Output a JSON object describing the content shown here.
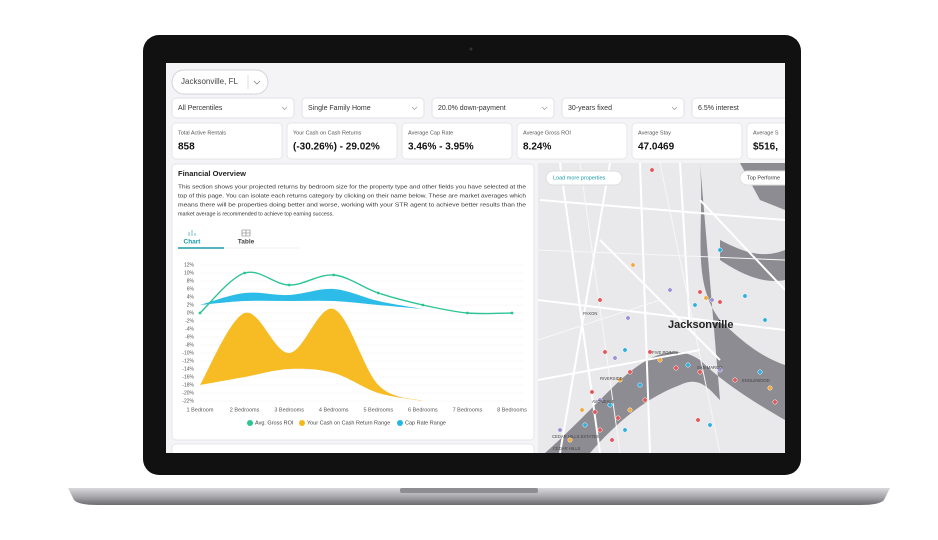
{
  "location": "Jacksonville, FL",
  "filters": [
    "All Percentiles",
    "Single Family Home",
    "20.0% down-payment",
    "30-years fixed",
    "6.5% interest"
  ],
  "stats": [
    {
      "label": "Total Active Rentals",
      "value": "858"
    },
    {
      "label": "Your Cash on Cash Returns",
      "value": "(-30.26%) - 29.02%"
    },
    {
      "label": "Average Cap Rate",
      "value": "3.46% - 3.95%"
    },
    {
      "label": "Average Gross ROI",
      "value": "8.24%"
    },
    {
      "label": "Average Stay",
      "value": "47.0469"
    },
    {
      "label": "Average S",
      "value": "$516,"
    }
  ],
  "overview": {
    "title": "Financial Overview",
    "description_lines": [
      "This section shows your projected returns by bedroom size for the property type and other fields you have selected at the",
      "top of this page. You can isolate each returns category by clicking on their name below. These are market averages which",
      "means there will be properties doing better and worse, working with your STR agent to achieve better results than the",
      "market average is recommended to achieve top earning success."
    ],
    "tabs": [
      "Chart",
      "Table"
    ]
  },
  "chart_data": {
    "type": "line",
    "categories": [
      "1 Bedroom",
      "2 Bedrooms",
      "3 Bedrooms",
      "4 Bedrooms",
      "5 Bedrooms",
      "6 Bedrooms",
      "7 Bedrooms",
      "8 Bedrooms"
    ],
    "ylim": [
      -22,
      12
    ],
    "yticks": [
      {
        "value": 12,
        "label": "12%"
      },
      {
        "value": 10,
        "label": "10%"
      },
      {
        "value": 8,
        "label": "8%"
      },
      {
        "value": 6,
        "label": "6%"
      },
      {
        "value": 4,
        "label": "4%"
      },
      {
        "value": 2,
        "label": "2%"
      },
      {
        "value": 0,
        "label": "0%"
      },
      {
        "value": -2,
        "label": "-2%"
      },
      {
        "value": -4,
        "label": "-4%"
      },
      {
        "value": -6,
        "label": "-6%"
      },
      {
        "value": -8,
        "label": "-8%"
      },
      {
        "value": -10,
        "label": "-10%"
      },
      {
        "value": -12,
        "label": "-12%"
      },
      {
        "value": -14,
        "label": "-14%"
      },
      {
        "value": -16,
        "label": "-16%"
      },
      {
        "value": -18,
        "label": "-18%"
      },
      {
        "value": -20,
        "label": "-20%"
      },
      {
        "value": -22,
        "label": "-22%"
      }
    ],
    "grid": true,
    "series": [
      {
        "name": "Avg. Gross ROI",
        "color": "#2cc495",
        "kind": "line",
        "values": [
          0,
          10,
          7,
          9.5,
          5,
          2,
          0,
          0
        ]
      },
      {
        "name": "Your Cash on Cash Return Range",
        "color": "#f7b718",
        "kind": "range",
        "high": [
          -18,
          0,
          -10,
          1,
          -18,
          -22,
          null,
          null
        ],
        "low": [
          -18,
          -16,
          -14,
          -15,
          -20,
          -22,
          null,
          null
        ]
      },
      {
        "name": "Cap Rate Range",
        "color": "#21b8e6",
        "kind": "range",
        "high": [
          2,
          5,
          4.5,
          6,
          3,
          1,
          null,
          null
        ],
        "low": [
          2,
          3,
          3,
          3,
          2,
          1,
          null,
          null
        ]
      }
    ]
  },
  "map": {
    "buttons": [
      "Load more properties",
      "Top Performe"
    ],
    "city": "Jacksonville",
    "places": [
      "PAXON",
      "FIVE POINTS",
      "SAN MARCO",
      "RIVERSIDE",
      "AVONDALE",
      "ENGLEWOOD",
      "CEDAR HILLS ESTATES",
      "CEDAR HILLS"
    ]
  }
}
